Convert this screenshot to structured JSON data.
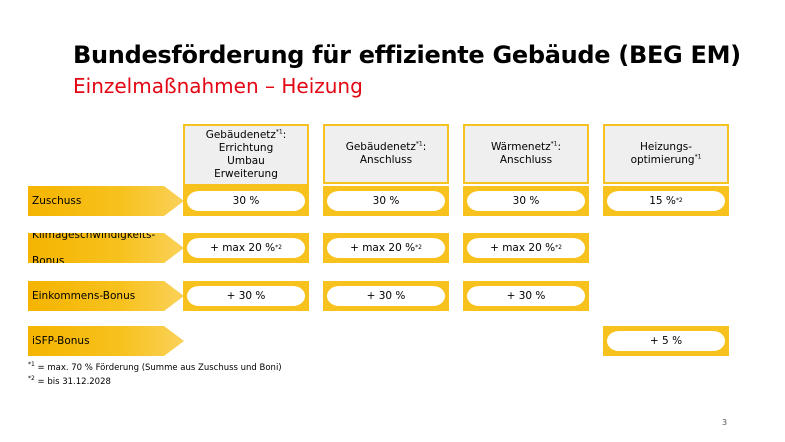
{
  "title": "Bundesförderung für effiziente Gebäude (BEG EM)",
  "subtitle": "Einzelmaßnahmen –  Heizung",
  "columns": [
    {
      "lines": [
        "Gebäudenetz",
        "Errichtung",
        "Umbau",
        "Erweiterung"
      ],
      "sup": "*1",
      "suffix": ":"
    },
    {
      "lines": [
        "Gebäudenetz",
        "Anschluss"
      ],
      "sup": "*1",
      "suffix": ":"
    },
    {
      "lines": [
        "Wärmenetz",
        "Anschluss"
      ],
      "sup": "*1",
      "suffix": ":"
    },
    {
      "lines": [
        "Heizungs-",
        "optimierung"
      ],
      "sup": "*1",
      "suffix": ""
    }
  ],
  "rows": [
    {
      "label": "Zuschuss",
      "cells": [
        "30 %",
        "30 %",
        "30 %",
        "15 %"
      ],
      "cell_sups": [
        "",
        "",
        "",
        "*2"
      ]
    },
    {
      "label_lines": [
        "Klimageschwindigkeits-",
        "Bonus"
      ],
      "cells": [
        "+ max 20 %",
        "+ max 20 %",
        "+ max 20 %",
        ""
      ],
      "cell_sups": [
        "*2",
        "*2",
        "*2",
        ""
      ]
    },
    {
      "label": "Einkommens-Bonus",
      "cells": [
        "+ 30 %",
        "+ 30 %",
        "+ 30 %",
        ""
      ],
      "cell_sups": [
        "",
        "",
        "",
        ""
      ]
    },
    {
      "label": "iSFP-Bonus",
      "cells": [
        "",
        "",
        "",
        "+ 5 %"
      ],
      "cell_sups": [
        "",
        "",
        "",
        ""
      ]
    }
  ],
  "footnotes": {
    "f1_mark": "*1",
    "f1_text": " =  max. 70 % Förderung (Summe aus Zuschuss und Boni)",
    "f2_mark": "*2",
    "f2_text": " =  bis 31.12.2028"
  },
  "page_number": "3",
  "colors": {
    "accent": "#f7c21e",
    "subtitle": "#e30613",
    "header_bg": "#efefef"
  }
}
